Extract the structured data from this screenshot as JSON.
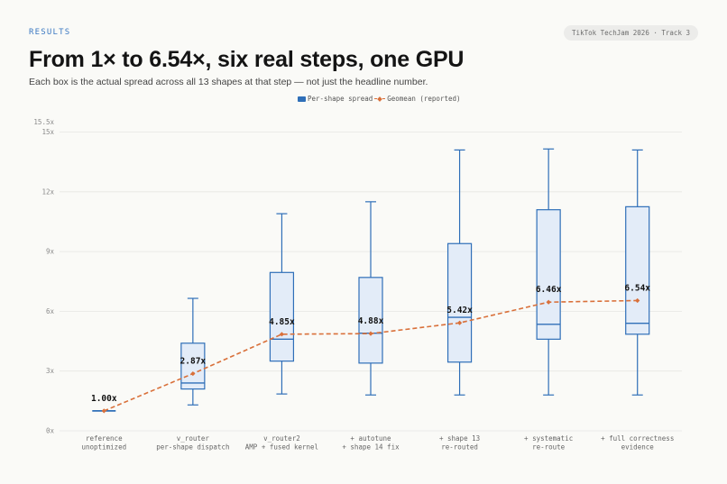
{
  "header": {
    "section_tag": "RESULTS",
    "badge": "TikTok TechJam 2026 · Track 3",
    "title": "From 1× to 6.54×, six real steps, one GPU",
    "subtitle": "Each box is the actual spread across all 13 shapes at that step — not just the headline number."
  },
  "legend": {
    "box_label": "Per-shape spread",
    "line_label": "Geomean (reported)"
  },
  "colors": {
    "box_stroke": "#2f6fb8",
    "box_fill": "#e3ecf8",
    "geomean": "#d9703a",
    "grid": "#e6e6e3"
  },
  "chart_data": {
    "type": "box",
    "ylim": [
      0,
      15.5
    ],
    "yticks": [
      {
        "value": 0,
        "label": "0x"
      },
      {
        "value": 3,
        "label": "3x"
      },
      {
        "value": 6,
        "label": "6x"
      },
      {
        "value": 9,
        "label": "9x"
      },
      {
        "value": 12,
        "label": "12x"
      },
      {
        "value": 15,
        "label": "15x"
      },
      {
        "value": 15.5,
        "label": "15.5x"
      }
    ],
    "categories": [
      [
        "reference",
        "unoptimized"
      ],
      [
        "v_router",
        "per-shape dispatch"
      ],
      [
        "v_router2",
        "AMP + fused kernel"
      ],
      [
        "+ autotune",
        "+ shape 14 fix"
      ],
      [
        "+ shape 13",
        "re-routed"
      ],
      [
        "+ systematic",
        "re-route"
      ],
      [
        "+ full correctness",
        "evidence"
      ]
    ],
    "boxes": [
      {
        "min": 1.0,
        "q1": 1.0,
        "median": 1.0,
        "q3": 1.0,
        "max": 1.0
      },
      {
        "min": 1.3,
        "q1": 2.1,
        "median": 2.4,
        "q3": 4.4,
        "max": 6.65
      },
      {
        "min": 1.85,
        "q1": 3.5,
        "median": 4.6,
        "q3": 7.95,
        "max": 10.9
      },
      {
        "min": 1.8,
        "q1": 3.4,
        "median": 4.9,
        "q3": 7.7,
        "max": 11.5
      },
      {
        "min": 1.8,
        "q1": 3.45,
        "median": 5.7,
        "q3": 9.4,
        "max": 14.1
      },
      {
        "min": 1.8,
        "q1": 4.6,
        "median": 5.35,
        "q3": 11.1,
        "max": 14.15
      },
      {
        "min": 1.8,
        "q1": 4.85,
        "median": 5.4,
        "q3": 11.25,
        "max": 14.1
      }
    ],
    "geomean": [
      1.0,
      2.87,
      4.85,
      4.88,
      5.42,
      6.46,
      6.54
    ],
    "geomean_labels": [
      "1.00x",
      "2.87x",
      "4.85x",
      "4.88x",
      "5.42x",
      "6.46x",
      "6.54x"
    ]
  }
}
